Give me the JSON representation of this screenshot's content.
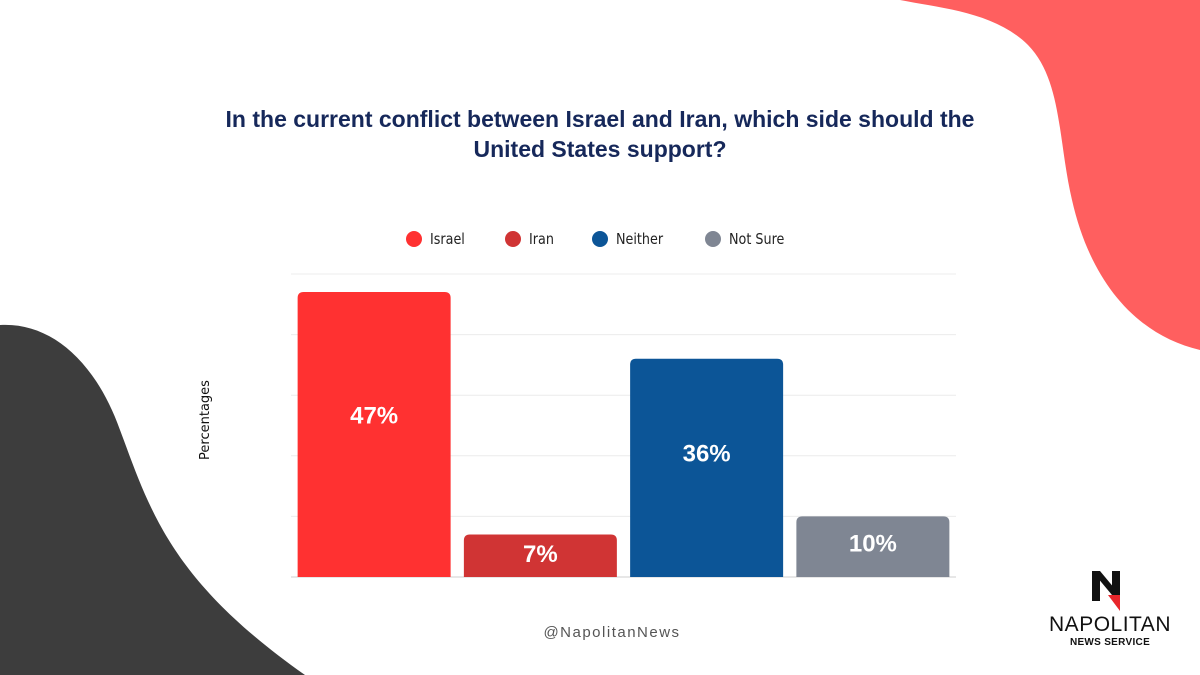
{
  "chart_data": {
    "type": "bar",
    "title": "In the current conflict between Israel and Iran, which side should the United States support?",
    "ylabel": "Percentages",
    "xlabel": "",
    "ylim": [
      0,
      47
    ],
    "grid": true,
    "legend_placement": "top",
    "categories": [
      "Israel",
      "Iran",
      "Neither",
      "Not Sure"
    ],
    "values": [
      47,
      7,
      36,
      10
    ],
    "data_labels": [
      "47%",
      "7%",
      "36%",
      "10%"
    ],
    "colors": [
      "#ff3131",
      "#d03434",
      "#0c5597",
      "#7f8693"
    ]
  },
  "footer": {
    "handle": "@NapolitanNews"
  },
  "logo": {
    "icon": "napolitan-n-logo-icon",
    "name": "NAPOLITAN",
    "subtitle": "NEWS SERVICE"
  },
  "decor": {
    "top_right_blob_color": "#ff5f5f",
    "bottom_left_blob_color": "#3d3d3d"
  }
}
